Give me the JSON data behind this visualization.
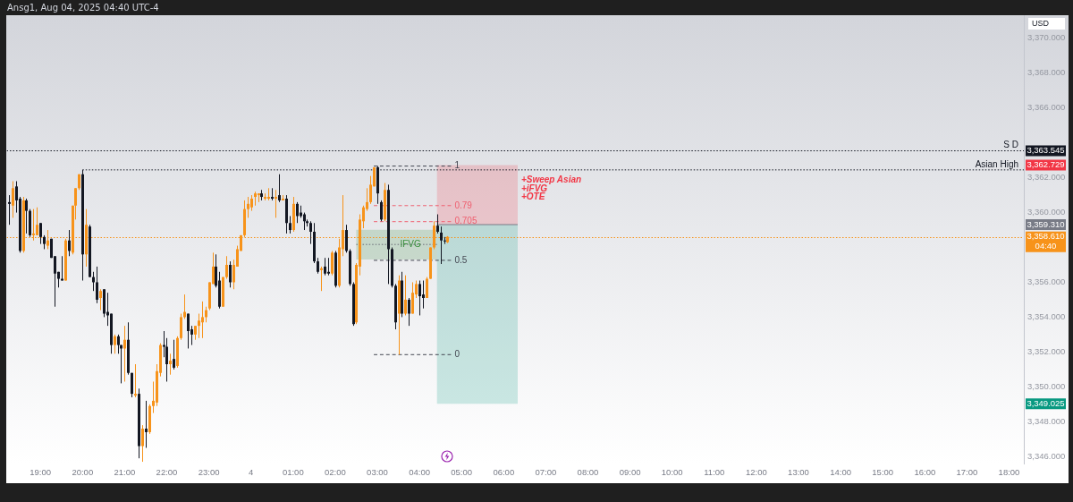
{
  "chart_data": {
    "type": "candlestick",
    "title": "Ansg1, Aug 04, 2025 04:40 UTC-4",
    "ylabel": "USD",
    "x": [
      "2025-08-03T18:15",
      "2025-08-03T18:20",
      "2025-08-03T18:25",
      "2025-08-03T18:30",
      "2025-08-03T18:35",
      "2025-08-03T18:40",
      "2025-08-03T18:45",
      "2025-08-03T18:50",
      "2025-08-03T18:55",
      "2025-08-03T19:00",
      "2025-08-03T19:05",
      "2025-08-03T19:10",
      "2025-08-03T19:15",
      "2025-08-03T19:20",
      "2025-08-03T19:25",
      "2025-08-03T19:30",
      "2025-08-03T19:35",
      "2025-08-03T19:40",
      "2025-08-03T19:45",
      "2025-08-03T19:50",
      "2025-08-03T19:55",
      "2025-08-03T20:00",
      "2025-08-03T20:05",
      "2025-08-03T20:10",
      "2025-08-03T20:15",
      "2025-08-03T20:20",
      "2025-08-03T20:25",
      "2025-08-03T20:30",
      "2025-08-03T20:35",
      "2025-08-03T20:40",
      "2025-08-03T20:45",
      "2025-08-03T20:50",
      "2025-08-03T20:55",
      "2025-08-03T21:00",
      "2025-08-03T21:05",
      "2025-08-03T21:10",
      "2025-08-03T21:15",
      "2025-08-03T21:20",
      "2025-08-03T21:25",
      "2025-08-03T21:30",
      "2025-08-03T21:35",
      "2025-08-03T21:40",
      "2025-08-03T21:45",
      "2025-08-03T21:50",
      "2025-08-03T21:55",
      "2025-08-03T22:00",
      "2025-08-03T22:05",
      "2025-08-03T22:10",
      "2025-08-03T22:15",
      "2025-08-03T22:20",
      "2025-08-03T22:25",
      "2025-08-03T22:30",
      "2025-08-03T22:35",
      "2025-08-03T22:40",
      "2025-08-03T22:45",
      "2025-08-03T22:50",
      "2025-08-03T22:55",
      "2025-08-03T23:00",
      "2025-08-03T23:05",
      "2025-08-03T23:10",
      "2025-08-03T23:15",
      "2025-08-03T23:20",
      "2025-08-03T23:25",
      "2025-08-03T23:30",
      "2025-08-03T23:35",
      "2025-08-03T23:40",
      "2025-08-03T23:45",
      "2025-08-03T23:50",
      "2025-08-03T23:55",
      "2025-08-04T00:00",
      "2025-08-04T00:05",
      "2025-08-04T00:10",
      "2025-08-04T00:15",
      "2025-08-04T00:20",
      "2025-08-04T00:25",
      "2025-08-04T00:30",
      "2025-08-04T00:35",
      "2025-08-04T00:40",
      "2025-08-04T00:45",
      "2025-08-04T00:50",
      "2025-08-04T00:55",
      "2025-08-04T01:00",
      "2025-08-04T01:05",
      "2025-08-04T01:10",
      "2025-08-04T01:15",
      "2025-08-04T01:20",
      "2025-08-04T01:25",
      "2025-08-04T01:30",
      "2025-08-04T01:35",
      "2025-08-04T01:40",
      "2025-08-04T01:45",
      "2025-08-04T01:50",
      "2025-08-04T01:55",
      "2025-08-04T02:00",
      "2025-08-04T02:05",
      "2025-08-04T02:10",
      "2025-08-04T02:15",
      "2025-08-04T02:20",
      "2025-08-04T02:25",
      "2025-08-04T02:30",
      "2025-08-04T02:35",
      "2025-08-04T02:40",
      "2025-08-04T02:45",
      "2025-08-04T02:50",
      "2025-08-04T02:55",
      "2025-08-04T03:00",
      "2025-08-04T03:05",
      "2025-08-04T03:10",
      "2025-08-04T03:15",
      "2025-08-04T03:20",
      "2025-08-04T03:25",
      "2025-08-04T03:30",
      "2025-08-04T03:35",
      "2025-08-04T03:40",
      "2025-08-04T03:45",
      "2025-08-04T03:50",
      "2025-08-04T03:55",
      "2025-08-04T04:00",
      "2025-08-04T04:05",
      "2025-08-04T04:10",
      "2025-08-04T04:15",
      "2025-08-04T04:20",
      "2025-08-04T04:25",
      "2025-08-04T04:30",
      "2025-08-04T04:35",
      "2025-08-04T04:40"
    ],
    "ohlc": [
      [
        3360.6,
        3361.0,
        3359.3,
        3360.5
      ],
      [
        3360.4,
        3361.8,
        3359.7,
        3361.4
      ],
      [
        3361.5,
        3361.8,
        3360.0,
        3360.7
      ],
      [
        3360.8,
        3360.9,
        3357.7,
        3357.8
      ],
      [
        3357.8,
        3360.9,
        3357.7,
        3360.7
      ],
      [
        3360.7,
        3360.8,
        3358.8,
        3360.1
      ],
      [
        3360.1,
        3360.2,
        3358.6,
        3358.7
      ],
      [
        3358.7,
        3360.2,
        3358.4,
        3358.8
      ],
      [
        3358.7,
        3360.3,
        3358.7,
        3359.3
      ],
      [
        3359.4,
        3359.4,
        3358.2,
        3358.6
      ],
      [
        3358.6,
        3358.7,
        3357.9,
        3358.2
      ],
      [
        3358.1,
        3359.0,
        3357.9,
        3358.4
      ],
      [
        3358.5,
        3358.5,
        3357.4,
        3357.4
      ],
      [
        3357.5,
        3357.5,
        3354.6,
        3356.5
      ],
      [
        3356.6,
        3356.6,
        3355.7,
        3356.2
      ],
      [
        3356.2,
        3357.5,
        3356.1,
        3356.1
      ],
      [
        3356.1,
        3358.5,
        3356.1,
        3358.4
      ],
      [
        3358.4,
        3359.0,
        3357.5,
        3357.8
      ],
      [
        3357.7,
        3360.4,
        3357.6,
        3360.4
      ],
      [
        3360.4,
        3361.4,
        3359.6,
        3361.4
      ],
      [
        3361.4,
        3362.2,
        3361.3,
        3362.2
      ],
      [
        3362.2,
        3362.45,
        3356.1,
        3357.6
      ],
      [
        3357.6,
        3360.2,
        3356.9,
        3359.3
      ],
      [
        3359.2,
        3359.3,
        3356.3,
        3356.3
      ],
      [
        3356.3,
        3356.6,
        3355.5,
        3356.0
      ],
      [
        3356.0,
        3356.9,
        3354.8,
        3355.0
      ],
      [
        3355.1,
        3355.6,
        3354.4,
        3355.5
      ],
      [
        3355.6,
        3355.6,
        3354.0,
        3354.2
      ],
      [
        3354.3,
        3355.4,
        3353.5,
        3354.1
      ],
      [
        3354.2,
        3354.2,
        3351.9,
        3352.4
      ],
      [
        3352.4,
        3353.0,
        3351.9,
        3352.9
      ],
      [
        3352.9,
        3353.0,
        3351.9,
        3352.4
      ],
      [
        3352.4,
        3352.4,
        3350.2,
        3352.2
      ],
      [
        3352.2,
        3353.5,
        3350.3,
        3352.7
      ],
      [
        3352.7,
        3353.7,
        3350.7,
        3350.8
      ],
      [
        3350.8,
        3350.8,
        3349.4,
        3349.6
      ],
      [
        3349.5,
        3351.3,
        3349.4,
        3349.6
      ],
      [
        3349.6,
        3349.9,
        3345.9,
        3346.6
      ],
      [
        3346.6,
        3347.8,
        3345.7,
        3347.6
      ],
      [
        3347.6,
        3349.2,
        3346.5,
        3347.4
      ],
      [
        3347.4,
        3349.0,
        3347.3,
        3348.9
      ],
      [
        3348.9,
        3350.3,
        3348.5,
        3349.2
      ],
      [
        3349.1,
        3351.3,
        3348.9,
        3350.9
      ],
      [
        3350.8,
        3352.5,
        3350.6,
        3352.4
      ],
      [
        3352.4,
        3353.2,
        3351.7,
        3352.3
      ],
      [
        3352.3,
        3352.8,
        3350.3,
        3351.3
      ],
      [
        3351.3,
        3351.9,
        3350.7,
        3351.5
      ],
      [
        3351.6,
        3352.7,
        3351.0,
        3351.1
      ],
      [
        3351.2,
        3352.9,
        3351.1,
        3352.8
      ],
      [
        3352.8,
        3354.2,
        3352.7,
        3354.0
      ],
      [
        3354.0,
        3355.3,
        3353.9,
        3354.3
      ],
      [
        3354.2,
        3354.2,
        3352.2,
        3353.2
      ],
      [
        3353.3,
        3353.5,
        3352.4,
        3353.0
      ],
      [
        3353.0,
        3353.5,
        3352.7,
        3353.5
      ],
      [
        3353.5,
        3354.2,
        3352.8,
        3353.8
      ],
      [
        3353.7,
        3354.9,
        3352.8,
        3354.0
      ],
      [
        3354.0,
        3354.6,
        3353.7,
        3354.4
      ],
      [
        3354.5,
        3356.0,
        3354.4,
        3356.0
      ],
      [
        3355.9,
        3357.7,
        3355.9,
        3356.9
      ],
      [
        3356.9,
        3357.6,
        3355.7,
        3355.8
      ],
      [
        3356.1,
        3356.6,
        3354.5,
        3354.6
      ],
      [
        3354.6,
        3356.3,
        3354.6,
        3356.3
      ],
      [
        3356.3,
        3357.5,
        3356.2,
        3357.0
      ],
      [
        3357.0,
        3357.2,
        3355.7,
        3356.0
      ],
      [
        3356.0,
        3357.3,
        3355.6,
        3357.0
      ],
      [
        3356.9,
        3358.1,
        3356.9,
        3357.9
      ],
      [
        3357.8,
        3358.7,
        3357.8,
        3358.7
      ],
      [
        3358.7,
        3360.7,
        3358.6,
        3360.2
      ],
      [
        3360.2,
        3360.9,
        3359.7,
        3360.5
      ],
      [
        3360.3,
        3361.0,
        3360.1,
        3360.8
      ],
      [
        3360.9,
        3361.2,
        3360.4,
        3361.1
      ],
      [
        3361.0,
        3361.1,
        3360.6,
        3361.1
      ],
      [
        3361.1,
        3361.3,
        3360.7,
        3360.9
      ],
      [
        3360.8,
        3361.1,
        3360.7,
        3360.9
      ],
      [
        3360.8,
        3361.4,
        3360.7,
        3360.9
      ],
      [
        3360.9,
        3361.4,
        3360.7,
        3360.8
      ],
      [
        3360.8,
        3361.3,
        3359.7,
        3360.9
      ],
      [
        3361.0,
        3362.2,
        3360.6,
        3360.7
      ],
      [
        3360.7,
        3361.0,
        3360.7,
        3360.8
      ],
      [
        3360.8,
        3361.0,
        3358.8,
        3359.4
      ],
      [
        3359.4,
        3359.8,
        3358.8,
        3359.0
      ],
      [
        3359.0,
        3360.9,
        3358.9,
        3360.5
      ],
      [
        3360.5,
        3360.6,
        3359.4,
        3359.8
      ],
      [
        3360.0,
        3360.4,
        3359.7,
        3359.8
      ],
      [
        3359.9,
        3360.0,
        3359.0,
        3359.5
      ],
      [
        3359.5,
        3359.6,
        3359.2,
        3359.4
      ],
      [
        3359.4,
        3359.5,
        3358.2,
        3358.9
      ],
      [
        3358.9,
        3359.4,
        3357.1,
        3357.2
      ],
      [
        3357.2,
        3357.4,
        3356.5,
        3356.6
      ],
      [
        3356.7,
        3356.9,
        3355.5,
        3356.8
      ],
      [
        3356.9,
        3357.4,
        3356.4,
        3356.5
      ],
      [
        3356.6,
        3357.4,
        3356.4,
        3356.5
      ],
      [
        3356.5,
        3357.8,
        3356.4,
        3357.7
      ],
      [
        3357.7,
        3357.8,
        3355.7,
        3355.8
      ],
      [
        3355.8,
        3358.5,
        3355.7,
        3358.0
      ],
      [
        3357.9,
        3361.0,
        3357.5,
        3359.0
      ],
      [
        3359.0,
        3359.3,
        3357.7,
        3357.8
      ],
      [
        3357.8,
        3357.9,
        3355.8,
        3355.9
      ],
      [
        3355.9,
        3356.0,
        3353.5,
        3353.6
      ],
      [
        3353.7,
        3357.1,
        3353.6,
        3357.0
      ],
      [
        3356.9,
        3359.9,
        3356.4,
        3359.6
      ],
      [
        3359.5,
        3360.4,
        3359.1,
        3360.3
      ],
      [
        3360.2,
        3361.4,
        3360.1,
        3360.6
      ],
      [
        3360.6,
        3362.1,
        3360.5,
        3361.6
      ],
      [
        3361.5,
        3362.6,
        3361.5,
        3362.6
      ],
      [
        3362.6,
        3362.67,
        3360.5,
        3361.1
      ],
      [
        3360.6,
        3360.7,
        3359.5,
        3359.6
      ],
      [
        3359.6,
        3361.7,
        3359.5,
        3361.3
      ],
      [
        3361.3,
        3361.6,
        3355.9,
        3357.9
      ],
      [
        3357.9,
        3358.0,
        3355.7,
        3355.8
      ],
      [
        3355.8,
        3355.9,
        3353.3,
        3353.7
      ],
      [
        3354.2,
        3356.4,
        3351.85,
        3356.1
      ],
      [
        3356.1,
        3356.6,
        3354.0,
        3354.2
      ],
      [
        3354.2,
        3356.4,
        3354.1,
        3355.0
      ],
      [
        3355.0,
        3355.1,
        3353.5,
        3354.2
      ],
      [
        3354.2,
        3356.0,
        3354.2,
        3355.4
      ],
      [
        3355.3,
        3356.1,
        3355.1,
        3355.9
      ],
      [
        3355.9,
        3356.1,
        3354.1,
        3355.2
      ],
      [
        3355.3,
        3356.1,
        3354.5,
        3355.1
      ],
      [
        3355.1,
        3356.3,
        3355.1,
        3356.2
      ],
      [
        3356.2,
        3358.0,
        3356.2,
        3358.0
      ],
      [
        3358.0,
        3359.5,
        3357.9,
        3359.25
      ],
      [
        3359.25,
        3359.9,
        3358.8,
        3358.9
      ],
      [
        3358.85,
        3359.2,
        3357.05,
        3358.4
      ],
      [
        3358.4,
        3358.6,
        3358.2,
        3358.35
      ],
      [
        3358.3,
        3358.65,
        3358.25,
        3358.61
      ]
    ],
    "colors": [
      "#131722",
      "#f7931a",
      "#131722",
      "#131722",
      "#f7931a",
      "#131722",
      "#131722",
      "#f7931a",
      "#f7931a",
      "#131722",
      "#131722",
      "#f7931a",
      "#131722",
      "#131722",
      "#131722",
      "#131722",
      "#f7931a",
      "#131722",
      "#f7931a",
      "#f7931a",
      "#f7931a",
      "#131722",
      "#f7931a",
      "#131722",
      "#131722",
      "#131722",
      "#f7931a",
      "#131722",
      "#131722",
      "#131722",
      "#f7931a",
      "#131722",
      "#131722",
      "#f7931a",
      "#131722",
      "#131722",
      "#f7931a",
      "#131722",
      "#f7931a",
      "#131722",
      "#f7931a",
      "#f7931a",
      "#f7931a",
      "#f7931a",
      "#131722",
      "#131722",
      "#f7931a",
      "#131722",
      "#f7931a",
      "#f7931a",
      "#f7931a",
      "#131722",
      "#131722",
      "#f7931a",
      "#f7931a",
      "#f7931a",
      "#f7931a",
      "#f7931a",
      "#f7931a",
      "#131722",
      "#131722",
      "#f7931a",
      "#f7931a",
      "#131722",
      "#f7931a",
      "#f7931a",
      "#f7931a",
      "#f7931a",
      "#f7931a",
      "#f7931a",
      "#f7931a",
      "#f7931a",
      "#131722",
      "#f7931a",
      "#f7931a",
      "#131722",
      "#f7931a",
      "#131722",
      "#f7931a",
      "#131722",
      "#131722",
      "#f7931a",
      "#131722",
      "#131722",
      "#131722",
      "#131722",
      "#131722",
      "#131722",
      "#131722",
      "#f7931a",
      "#131722",
      "#131722",
      "#f7931a",
      "#131722",
      "#f7931a",
      "#f7931a",
      "#131722",
      "#131722",
      "#131722",
      "#f7931a",
      "#f7931a",
      "#f7931a",
      "#f7931a",
      "#f7931a",
      "#f7931a",
      "#131722",
      "#131722",
      "#f7931a",
      "#131722",
      "#131722",
      "#131722",
      "#f7931a",
      "#131722",
      "#f7931a",
      "#131722",
      "#f7931a",
      "#f7931a",
      "#131722",
      "#131722",
      "#f7931a",
      "#f7931a",
      "#f7931a",
      "#131722",
      "#131722",
      "#131722",
      "#f7931a"
    ],
    "series": [
      {
        "name": "S D",
        "type": "line",
        "line_style": "dotted",
        "color": "#131722",
        "x": [
          "2025-08-03T18:12",
          "2025-08-04T18:21"
        ],
        "values": [
          3363.545,
          3363.545
        ]
      },
      {
        "name": "Asian High",
        "type": "line",
        "line_style": "dotted",
        "color": "#131722",
        "x": [
          "2025-08-03T20:00",
          "2025-08-04T18:21"
        ],
        "values": [
          3362.45,
          3362.45
        ]
      },
      {
        "name": "1",
        "type": "line",
        "line_style": "dashed",
        "color": "#434651",
        "x": [
          "2025-08-04T02:55",
          "2025-08-04T04:45"
        ],
        "values": [
          3362.67,
          3362.67
        ]
      },
      {
        "name": "0.79",
        "type": "line",
        "line_style": "dashed",
        "color": "#ef5f6f",
        "x": [
          "2025-08-04T02:55",
          "2025-08-04T04:45"
        ],
        "values": [
          3360.4,
          3360.4
        ]
      },
      {
        "name": "0.705",
        "type": "line",
        "line_style": "dashed",
        "color": "#ef5f6f",
        "x": [
          "2025-08-04T02:55",
          "2025-08-04T04:45"
        ],
        "values": [
          3359.48,
          3359.48
        ]
      },
      {
        "name": "0.5",
        "type": "line",
        "line_style": "dashed",
        "color": "#434651",
        "x": [
          "2025-08-04T02:55",
          "2025-08-04T04:45"
        ],
        "values": [
          3357.26,
          3357.26
        ]
      },
      {
        "name": "0",
        "type": "line",
        "line_style": "dashed",
        "color": "#434651",
        "x": [
          "2025-08-04T02:55",
          "2025-08-04T04:45"
        ],
        "values": [
          3351.85,
          3351.85
        ]
      },
      {
        "name": "IFVG",
        "type": "line",
        "color": "#388e3c",
        "x": [
          "2025-08-04T02:30",
          "2025-08-04T04:25"
        ],
        "values": [
          null,
          null
        ],
        "lower": [
          3357.31,
          3357.31
        ],
        "upper": [
          3359.02,
          3359.02
        ]
      },
      {
        "type": "line",
        "line_style": "dotted",
        "color": "#6a6d78",
        "x": [
          "2025-08-04T02:30",
          "2025-08-04T04:25"
        ],
        "values": [
          3358.17,
          3358.17
        ]
      },
      {
        "type": "line",
        "color": "#f23645",
        "x": [
          "2025-08-04T04:25",
          "2025-08-04T06:20"
        ],
        "values": [
          null,
          null
        ],
        "lower": [
          3359.31,
          3359.31
        ],
        "upper": [
          3362.729,
          3362.729
        ]
      },
      {
        "type": "line",
        "color": "#089981",
        "x": [
          "2025-08-04T04:25",
          "2025-08-04T06:20"
        ],
        "values": [
          null,
          null
        ],
        "lower": [
          3349.025,
          3349.025
        ],
        "upper": [
          3359.31,
          3359.31
        ]
      },
      {
        "type": "line",
        "color": "#787b86",
        "x": [
          "2025-08-04T04:25",
          "2025-08-04T06:20"
        ],
        "values": [
          3359.31,
          3359.31
        ]
      }
    ],
    "ref_lines": [
      {
        "axis": "y",
        "value": 3358.61,
        "color": "#f7931a",
        "line_style": "dotted"
      }
    ],
    "annotations": [
      {
        "text": "+Sweep Asian\n+iFVG\n+OTE",
        "x": "2025-08-04T06:25",
        "y": 3362.1
      },
      {
        "text": "04:40",
        "x": "2025-08-04T18:21",
        "y": 3358.61
      }
    ],
    "xlim": [
      "2025-08-03T18:12",
      "2025-08-04T18:21"
    ],
    "xticks": [
      {
        "value": "2025-08-03T19:00",
        "label": "19:00"
      },
      {
        "value": "2025-08-03T20:00",
        "label": "20:00"
      },
      {
        "value": "2025-08-03T21:00",
        "label": "21:00"
      },
      {
        "value": "2025-08-03T22:00",
        "label": "22:00"
      },
      {
        "value": "2025-08-03T23:00",
        "label": "23:00"
      },
      {
        "value": "2025-08-04T00:00",
        "label": "4"
      },
      {
        "value": "2025-08-04T01:00",
        "label": "01:00"
      },
      {
        "value": "2025-08-04T02:00",
        "label": "02:00"
      },
      {
        "value": "2025-08-04T03:00",
        "label": "03:00"
      },
      {
        "value": "2025-08-04T04:00",
        "label": "04:00"
      },
      {
        "value": "2025-08-04T05:00",
        "label": "05:00"
      },
      {
        "value": "2025-08-04T06:00",
        "label": "06:00"
      },
      {
        "value": "2025-08-04T07:00",
        "label": "07:00"
      },
      {
        "value": "2025-08-04T08:00",
        "label": "08:00"
      },
      {
        "value": "2025-08-04T09:00",
        "label": "09:00"
      },
      {
        "value": "2025-08-04T10:00",
        "label": "10:00"
      },
      {
        "value": "2025-08-04T11:00",
        "label": "11:00"
      },
      {
        "value": "2025-08-04T12:00",
        "label": "12:00"
      },
      {
        "value": "2025-08-04T13:00",
        "label": "13:00"
      },
      {
        "value": "2025-08-04T14:00",
        "label": "14:00"
      },
      {
        "value": "2025-08-04T15:00",
        "label": "15:00"
      },
      {
        "value": "2025-08-04T16:00",
        "label": "16:00"
      },
      {
        "value": "2025-08-04T17:00",
        "label": "17:00"
      },
      {
        "value": "2025-08-04T18:00",
        "label": "18:00"
      }
    ],
    "ylim": [
      3345.6,
      3371.3
    ],
    "yticks": [
      {
        "value": 3346,
        "label": "3,346.000"
      },
      {
        "value": 3348,
        "label": "3,348.000"
      },
      {
        "value": 3349.025,
        "label": "3,349.025"
      },
      {
        "value": 3350,
        "label": "3,350.000"
      },
      {
        "value": 3352,
        "label": "3,352.000"
      },
      {
        "value": 3354,
        "label": "3,354.000"
      },
      {
        "value": 3356,
        "label": "3,356.000"
      },
      {
        "value": 3358.61,
        "label": "3,358.610"
      },
      {
        "value": 3359.31,
        "label": "3,359.310"
      },
      {
        "value": 3360,
        "label": "3,360.000"
      },
      {
        "value": 3362,
        "label": "3,362.000"
      },
      {
        "value": 3362.729,
        "label": "3,362.729"
      },
      {
        "value": 3363.545,
        "label": "3,363.545"
      },
      {
        "value": 3366,
        "label": "3,366.000"
      },
      {
        "value": 3368,
        "label": "3,368.000"
      },
      {
        "value": 3370,
        "label": "3,370.000"
      }
    ]
  }
}
